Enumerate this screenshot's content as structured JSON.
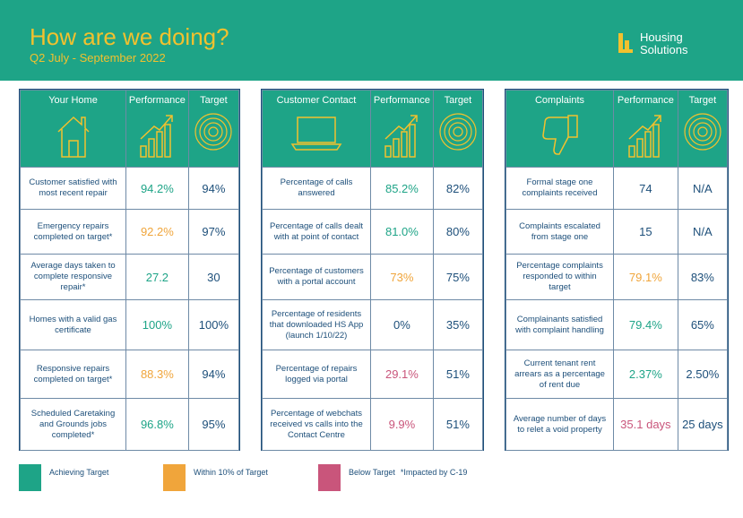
{
  "header": {
    "title": "How are we doing?",
    "subtitle": "Q2 July - September 2022",
    "brand_line1": "Housing",
    "brand_line2": "Solutions"
  },
  "colors": {
    "teal": "#1ea487",
    "amber": "#f0a53b",
    "pink": "#c9557b",
    "navy": "#1d4f7a",
    "title_yellow": "#f2c12e"
  },
  "panels": [
    {
      "heading": "Your Home",
      "icon": "house-icon",
      "col_performance": "Performance",
      "col_target": "Target",
      "rows": [
        {
          "label": "Customer satisfied with most recent repair",
          "performance": "94.2%",
          "status": "green",
          "target": "94%"
        },
        {
          "label": "Emergency repairs completed on target*",
          "performance": "92.2%",
          "status": "amber",
          "target": "97%"
        },
        {
          "label": "Average days taken to complete responsive repair*",
          "performance": "27.2",
          "status": "green",
          "target": "30"
        },
        {
          "label": "Homes with a valid gas certificate",
          "performance": "100%",
          "status": "green",
          "target": "100%"
        },
        {
          "label": "Responsive repairs completed on target*",
          "performance": "88.3%",
          "status": "amber",
          "target": "94%"
        },
        {
          "label": "Scheduled Caretaking and Grounds jobs completed*",
          "performance": "96.8%",
          "status": "green",
          "target": "95%"
        }
      ]
    },
    {
      "heading": "Customer Contact",
      "icon": "laptop-icon",
      "col_performance": "Performance",
      "col_target": "Target",
      "rows": [
        {
          "label": "Percentage of calls answered",
          "performance": "85.2%",
          "status": "green",
          "target": "82%"
        },
        {
          "label": "Percentage of calls dealt with at point of contact",
          "performance": "81.0%",
          "status": "green",
          "target": "80%"
        },
        {
          "label": "Percentage of customers with a portal account",
          "performance": "73%",
          "status": "amber",
          "target": "75%"
        },
        {
          "label": "Percentage of residents that downloaded HS App (launch 1/10/22)",
          "performance": "0%",
          "status": "navy",
          "target": "35%"
        },
        {
          "label": "Percentage of repairs logged via portal",
          "performance": "29.1%",
          "status": "pink",
          "target": "51%"
        },
        {
          "label": "Percentage of webchats received vs calls into the Contact Centre",
          "performance": "9.9%",
          "status": "pink",
          "target": "51%"
        }
      ]
    },
    {
      "heading": "Complaints",
      "icon": "thumbs-down-icon",
      "col_performance": "Performance",
      "col_target": "Target",
      "rows": [
        {
          "label": "Formal stage one complaints received",
          "performance": "74",
          "status": "navy",
          "target": "N/A"
        },
        {
          "label": "Complaints escalated from stage one",
          "performance": "15",
          "status": "navy",
          "target": "N/A"
        },
        {
          "label": "Percentage complaints responded to within target",
          "performance": "79.1%",
          "status": "amber",
          "target": "83%"
        },
        {
          "label": "Complainants satisfied with complaint handling",
          "performance": "79.4%",
          "status": "green",
          "target": "65%"
        },
        {
          "label": "Current tenant rent arrears as a percentage of rent due",
          "performance": "2.37%",
          "status": "green",
          "target": "2.50%"
        },
        {
          "label": "Average number of days to relet a void property",
          "performance": "35.1 days",
          "status": "pink",
          "target": "25 days"
        }
      ]
    }
  ],
  "legend": {
    "achieving": "Achieving Target",
    "within": "Within 10% of Target",
    "below": "Below Target",
    "note": "*Impacted by C-19"
  }
}
